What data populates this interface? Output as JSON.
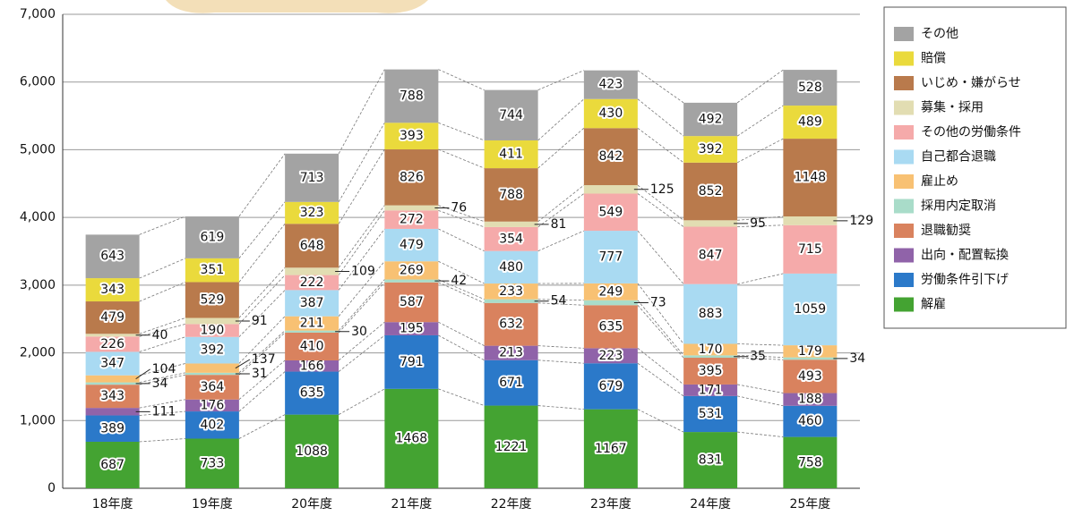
{
  "chart_data": {
    "type": "stacked_bar",
    "categories": [
      "18年度",
      "19年度",
      "20年度",
      "21年度",
      "22年度",
      "23年度",
      "24年度",
      "25年度"
    ],
    "series": [
      {
        "name": "解雇",
        "color": "#44a332",
        "values": [
          687,
          733,
          1088,
          1468,
          1221,
          1167,
          831,
          758
        ]
      },
      {
        "name": "労働条件引下げ",
        "color": "#2b79c9",
        "values": [
          389,
          402,
          635,
          791,
          671,
          679,
          531,
          460
        ]
      },
      {
        "name": "出向・配置転換",
        "color": "#9063a9",
        "values": [
          111,
          176,
          166,
          195,
          213,
          223,
          171,
          188
        ]
      },
      {
        "name": "退職勧奨",
        "color": "#d9825e",
        "values": [
          343,
          364,
          410,
          587,
          632,
          635,
          395,
          493
        ]
      },
      {
        "name": "採用内定取消",
        "color": "#a9dcc9",
        "values": [
          34,
          31,
          30,
          42,
          54,
          73,
          35,
          34
        ]
      },
      {
        "name": "雇止め",
        "color": "#f8c173",
        "values": [
          104,
          137,
          211,
          269,
          233,
          249,
          170,
          179
        ]
      },
      {
        "name": "自己都合退職",
        "color": "#a9daf2",
        "values": [
          347,
          392,
          387,
          479,
          480,
          777,
          883,
          1059
        ]
      },
      {
        "name": "その他の労働条件",
        "color": "#f5aaaa",
        "values": [
          226,
          190,
          222,
          272,
          354,
          549,
          847,
          715
        ]
      },
      {
        "name": "募集・採用",
        "color": "#e2ddb2",
        "values": [
          40,
          91,
          109,
          76,
          81,
          125,
          95,
          129
        ]
      },
      {
        "name": "いじめ・嫌がらせ",
        "color": "#b97a4c",
        "values": [
          479,
          529,
          648,
          826,
          788,
          842,
          852,
          1148
        ]
      },
      {
        "name": "賠償",
        "color": "#eada3c",
        "values": [
          343,
          351,
          323,
          393,
          411,
          430,
          392,
          489
        ]
      },
      {
        "name": "その他",
        "color": "#a3a3a3",
        "values": [
          643,
          619,
          713,
          788,
          744,
          423,
          492,
          528
        ]
      }
    ],
    "ylim": [
      0,
      7000
    ],
    "yticks": [
      0,
      {
        "value": 1000,
        "label": "1,000"
      },
      {
        "value": 2000,
        "label": "2,000"
      },
      {
        "value": 3000,
        "label": "3,000"
      },
      {
        "value": 4000,
        "label": "4,000"
      },
      {
        "value": 5000,
        "label": "5,000"
      },
      {
        "value": 6000,
        "label": "6,000"
      },
      {
        "value": 7000,
        "label": "7,000"
      }
    ],
    "grid": true
  }
}
